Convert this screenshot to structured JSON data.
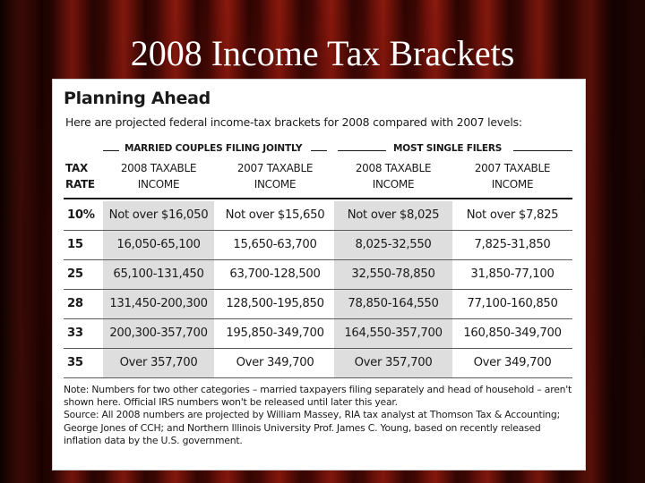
{
  "slide": {
    "title": "2008 Income Tax Brackets"
  },
  "panel": {
    "heading": "Planning Ahead",
    "subheading": "Here are projected federal income-tax brackets for 2008 compared with 2007 levels:",
    "groups": {
      "married": "MARRIED COUPLES FILING JOINTLY",
      "single": "MOST SINGLE FILERS"
    },
    "columns": {
      "rate": [
        "TAX",
        "RATE"
      ],
      "married_2008": [
        "2008 TAXABLE",
        "INCOME"
      ],
      "married_2007": [
        "2007 TAXABLE",
        "INCOME"
      ],
      "single_2008": [
        "2008 TAXABLE",
        "INCOME"
      ],
      "single_2007": [
        "2007 TAXABLE",
        "INCOME"
      ]
    },
    "rows": [
      {
        "rate": "10%",
        "married_2008": "Not over $16,050",
        "married_2007": "Not over $15,650",
        "single_2008": "Not over $8,025",
        "single_2007": "Not over $7,825"
      },
      {
        "rate": "15",
        "married_2008": "16,050-65,100",
        "married_2007": "15,650-63,700",
        "single_2008": "8,025-32,550",
        "single_2007": "7,825-31,850"
      },
      {
        "rate": "25",
        "married_2008": "65,100-131,450",
        "married_2007": "63,700-128,500",
        "single_2008": "32,550-78,850",
        "single_2007": "31,850-77,100"
      },
      {
        "rate": "28",
        "married_2008": "131,450-200,300",
        "married_2007": "128,500-195,850",
        "single_2008": "78,850-164,550",
        "single_2007": "77,100-160,850"
      },
      {
        "rate": "33",
        "married_2008": "200,300-357,700",
        "married_2007": "195,850-349,700",
        "single_2008": "164,550-357,700",
        "single_2007": "160,850-349,700"
      },
      {
        "rate": "35",
        "married_2008": "Over 357,700",
        "married_2007": "Over 349,700",
        "single_2008": "Over 357,700",
        "single_2007": "Over 349,700"
      }
    ],
    "note": "Note: Numbers for two other categories – married taxpayers filing separately and head of household – aren't shown here. Official IRS numbers won't be released until later this year.",
    "source": "Source: All 2008 numbers are projected by William Massey, RIA tax analyst at Thomson Tax & Accounting; George Jones of CCH; and Northern Illinois University Prof. James C. Young, based on recently released inflation data by the U.S. government."
  }
}
